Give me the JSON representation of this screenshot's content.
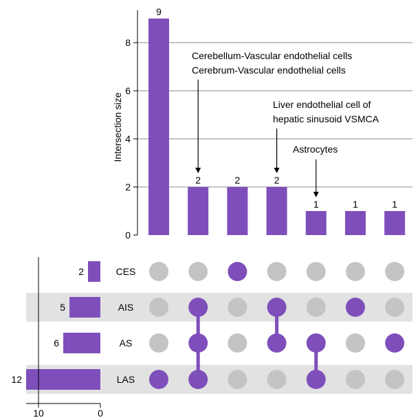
{
  "chart_data": {
    "type": "upset",
    "y_axis": {
      "label": "Intersection size",
      "ylim": [
        0,
        9
      ],
      "ticks": [
        0,
        2,
        4,
        6,
        8
      ]
    },
    "intersections": [
      {
        "sets": [
          "LAS"
        ],
        "size": 9
      },
      {
        "sets": [
          "AIS",
          "AS",
          "LAS"
        ],
        "size": 2
      },
      {
        "sets": [
          "CES"
        ],
        "size": 2
      },
      {
        "sets": [
          "AIS",
          "AS"
        ],
        "size": 2
      },
      {
        "sets": [
          "AS",
          "LAS"
        ],
        "size": 1
      },
      {
        "sets": [
          "AIS"
        ],
        "size": 1
      },
      {
        "sets": [
          "AS"
        ],
        "size": 1
      }
    ],
    "sets": [
      {
        "name": "CES",
        "size": 2
      },
      {
        "name": "AIS",
        "size": 5
      },
      {
        "name": "AS",
        "size": 6
      },
      {
        "name": "LAS",
        "size": 12
      }
    ],
    "set_size_axis": {
      "ticks": [
        10,
        0
      ],
      "xlim": [
        12,
        0
      ]
    },
    "annotations": [
      {
        "bar": 1,
        "lines": [
          "Cerebellum-Vascular endothelial cells",
          "Cerebrum-Vascular endothelial cells"
        ]
      },
      {
        "bar": 3,
        "lines": [
          "Liver endothelial cell of",
          "hepatic sinusoid VSMCA"
        ]
      },
      {
        "bar": 4,
        "lines": [
          "Astrocytes"
        ]
      }
    ],
    "colors": {
      "bar": "#7e4fbb",
      "dot_active": "#7e4fbb",
      "dot_inactive": "#c4c4c4",
      "row_shade": "#e2e2e2",
      "grid": "#8a8a8a"
    }
  }
}
